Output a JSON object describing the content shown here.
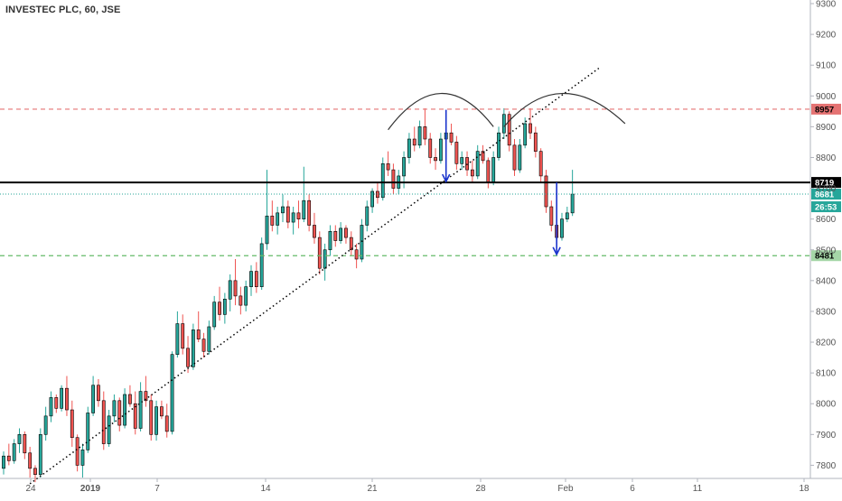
{
  "title": "INVESTEC PLC, 60, JSE",
  "colors": {
    "up": "#26a69a",
    "down": "#ef5350",
    "wick": "#000000",
    "resistance": "#e57373",
    "neckline": "#000000",
    "support": "#66bb6a",
    "current": "#26a69a",
    "arrow": "#1a33cc"
  },
  "chart_data": {
    "type": "candlestick",
    "title": "INVESTEC PLC, 60, JSE",
    "y_axis": {
      "min": 7750,
      "max": 9300,
      "ticks": [
        7800,
        7900,
        8000,
        8100,
        8200,
        8300,
        8400,
        8500,
        8600,
        8700,
        8800,
        8900,
        9000,
        9100,
        9200,
        9300
      ]
    },
    "x_ticks": [
      "24",
      "2019",
      "7",
      "14",
      "21",
      "28",
      "Feb",
      "6",
      "11",
      "18"
    ],
    "price_lines": [
      {
        "label": "8957",
        "value": 8957,
        "style": "dashed",
        "role": "resistance"
      },
      {
        "label": "8719",
        "value": 8719,
        "style": "solid",
        "role": "neckline"
      },
      {
        "label": "8681",
        "value": 8681,
        "style": "dotted",
        "role": "current"
      },
      {
        "label": "26:53",
        "role": "countdown"
      },
      {
        "label": "8481",
        "value": 8481,
        "style": "dashed",
        "role": "support"
      }
    ],
    "candles": [
      [
        7790,
        7845,
        7770,
        7830
      ],
      [
        7830,
        7870,
        7800,
        7815
      ],
      [
        7815,
        7885,
        7805,
        7870
      ],
      [
        7870,
        7920,
        7840,
        7900
      ],
      [
        7900,
        7910,
        7820,
        7840
      ],
      [
        7840,
        7860,
        7760,
        7790
      ],
      [
        7790,
        7800,
        7745,
        7770
      ],
      [
        7770,
        7920,
        7760,
        7900
      ],
      [
        7900,
        7990,
        7880,
        7960
      ],
      [
        7960,
        8040,
        7940,
        8020
      ],
      [
        8020,
        8030,
        7970,
        7985
      ],
      [
        7985,
        8060,
        7975,
        8050
      ],
      [
        8050,
        8090,
        7960,
        7980
      ],
      [
        7980,
        8010,
        7860,
        7890
      ],
      [
        7890,
        7900,
        7780,
        7800
      ],
      [
        7800,
        7870,
        7760,
        7850
      ],
      [
        7850,
        7990,
        7840,
        7970
      ],
      [
        7970,
        8090,
        7960,
        8060
      ],
      [
        8060,
        8080,
        7990,
        8010
      ],
      [
        8010,
        8040,
        7850,
        7870
      ],
      [
        7870,
        7980,
        7860,
        7960
      ],
      [
        7960,
        8030,
        7940,
        8010
      ],
      [
        8010,
        8020,
        7910,
        7930
      ],
      [
        7930,
        8050,
        7920,
        8030
      ],
      [
        8030,
        8060,
        7990,
        8000
      ],
      [
        8000,
        8040,
        7900,
        7920
      ],
      [
        7920,
        8070,
        7910,
        8040
      ],
      [
        8040,
        8090,
        7990,
        8010
      ],
      [
        8010,
        8030,
        7880,
        7900
      ],
      [
        7900,
        8010,
        7880,
        7990
      ],
      [
        7990,
        8010,
        7950,
        7960
      ],
      [
        7960,
        8000,
        7890,
        7910
      ],
      [
        7910,
        8170,
        7900,
        8160
      ],
      [
        8160,
        8300,
        8150,
        8260
      ],
      [
        8260,
        8290,
        8160,
        8180
      ],
      [
        8180,
        8220,
        8100,
        8120
      ],
      [
        8120,
        8260,
        8110,
        8240
      ],
      [
        8240,
        8300,
        8200,
        8210
      ],
      [
        8210,
        8230,
        8150,
        8170
      ],
      [
        8170,
        8270,
        8160,
        8250
      ],
      [
        8250,
        8350,
        8240,
        8330
      ],
      [
        8330,
        8380,
        8270,
        8290
      ],
      [
        8290,
        8360,
        8260,
        8340
      ],
      [
        8340,
        8420,
        8300,
        8400
      ],
      [
        8400,
        8470,
        8320,
        8350
      ],
      [
        8350,
        8380,
        8290,
        8320
      ],
      [
        8320,
        8400,
        8300,
        8380
      ],
      [
        8380,
        8450,
        8350,
        8430
      ],
      [
        8430,
        8460,
        8360,
        8380
      ],
      [
        8380,
        8540,
        8370,
        8520
      ],
      [
        8520,
        8760,
        8500,
        8610
      ],
      [
        8610,
        8660,
        8560,
        8580
      ],
      [
        8580,
        8640,
        8550,
        8620
      ],
      [
        8620,
        8680,
        8590,
        8640
      ],
      [
        8640,
        8660,
        8570,
        8590
      ],
      [
        8590,
        8640,
        8550,
        8620
      ],
      [
        8620,
        8660,
        8570,
        8600
      ],
      [
        8600,
        8770,
        8590,
        8660
      ],
      [
        8660,
        8680,
        8560,
        8580
      ],
      [
        8580,
        8620,
        8520,
        8540
      ],
      [
        8540,
        8560,
        8420,
        8440
      ],
      [
        8440,
        8520,
        8400,
        8500
      ],
      [
        8500,
        8580,
        8480,
        8560
      ],
      [
        8560,
        8580,
        8510,
        8530
      ],
      [
        8530,
        8590,
        8520,
        8570
      ],
      [
        8570,
        8580,
        8520,
        8540
      ],
      [
        8540,
        8560,
        8480,
        8500
      ],
      [
        8500,
        8520,
        8440,
        8470
      ],
      [
        8470,
        8600,
        8460,
        8580
      ],
      [
        8580,
        8660,
        8560,
        8640
      ],
      [
        8640,
        8700,
        8620,
        8690
      ],
      [
        8690,
        8720,
        8650,
        8670
      ],
      [
        8670,
        8800,
        8660,
        8780
      ],
      [
        8780,
        8820,
        8740,
        8760
      ],
      [
        8760,
        8780,
        8680,
        8700
      ],
      [
        8700,
        8760,
        8680,
        8740
      ],
      [
        8740,
        8820,
        8700,
        8800
      ],
      [
        8800,
        8880,
        8780,
        8860
      ],
      [
        8860,
        8900,
        8820,
        8840
      ],
      [
        8840,
        8920,
        8830,
        8900
      ],
      [
        8900,
        8960,
        8840,
        8860
      ],
      [
        8860,
        8880,
        8780,
        8800
      ],
      [
        8800,
        8830,
        8760,
        8790
      ],
      [
        8790,
        8880,
        8780,
        8860
      ],
      [
        8860,
        8900,
        8820,
        8880
      ],
      [
        8880,
        8910,
        8840,
        8850
      ],
      [
        8850,
        8870,
        8760,
        8780
      ],
      [
        8780,
        8820,
        8760,
        8800
      ],
      [
        8800,
        8820,
        8740,
        8760
      ],
      [
        8760,
        8790,
        8720,
        8740
      ],
      [
        8740,
        8840,
        8730,
        8820
      ],
      [
        8820,
        8840,
        8780,
        8790
      ],
      [
        8790,
        8800,
        8700,
        8720
      ],
      [
        8720,
        8820,
        8710,
        8800
      ],
      [
        8800,
        8900,
        8790,
        8880
      ],
      [
        8880,
        8960,
        8860,
        8940
      ],
      [
        8940,
        8950,
        8820,
        8840
      ],
      [
        8840,
        8860,
        8740,
        8760
      ],
      [
        8760,
        8860,
        8750,
        8840
      ],
      [
        8840,
        8930,
        8830,
        8910
      ],
      [
        8910,
        8960,
        8860,
        8880
      ],
      [
        8880,
        8900,
        8800,
        8820
      ],
      [
        8820,
        8830,
        8720,
        8740
      ],
      [
        8740,
        8760,
        8620,
        8640
      ],
      [
        8640,
        8660,
        8560,
        8580
      ],
      [
        8580,
        8600,
        8520,
        8540
      ],
      [
        8540,
        8620,
        8530,
        8600
      ],
      [
        8600,
        8640,
        8590,
        8620
      ],
      [
        8620,
        8760,
        8610,
        8681
      ]
    ],
    "annotations": [
      {
        "type": "trendline",
        "style": "dotted",
        "from": [
          5,
          7740
        ],
        "to": [
          113,
          9090
        ]
      },
      {
        "type": "arc",
        "from": [
          73,
          8890
        ],
        "peak": [
          83,
          9008
        ],
        "to": [
          93,
          8900
        ]
      },
      {
        "type": "arc",
        "from": [
          95,
          8900
        ],
        "peak": [
          106,
          9008
        ],
        "to": [
          118,
          8910
        ]
      },
      {
        "type": "arrow",
        "from": [
          84,
          8955
        ],
        "to": [
          84,
          8722
        ]
      },
      {
        "type": "arrow",
        "from": [
          105,
          8719
        ],
        "to": [
          105,
          8485
        ]
      }
    ]
  }
}
